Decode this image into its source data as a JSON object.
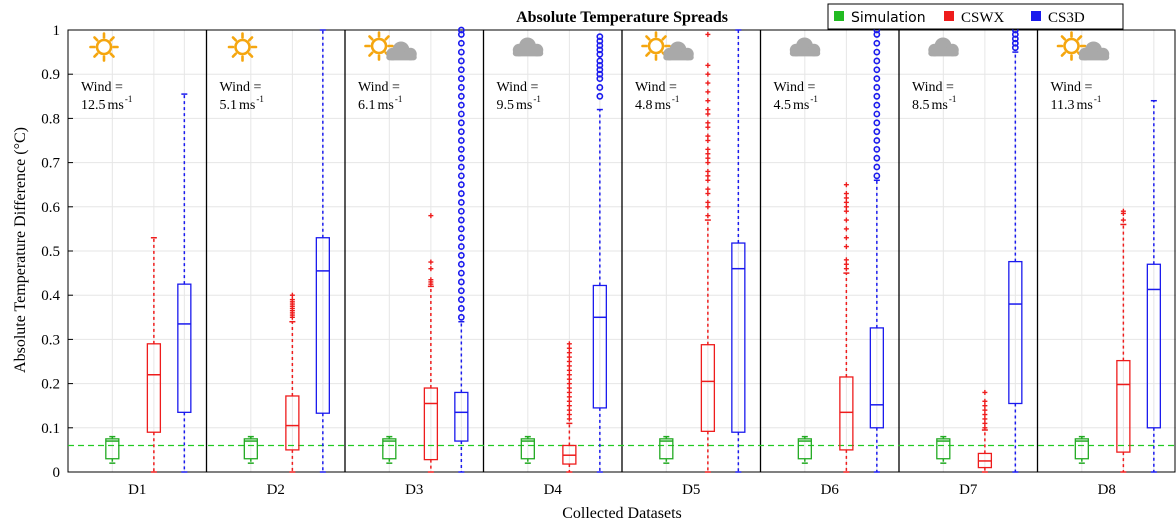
{
  "chart_data": {
    "type": "boxplot",
    "title": "Absolute Temperature Spreads",
    "xlabel": "Collected Datasets",
    "ylabel": "Absolute Temperature Difference (°C)",
    "ylim": [
      0,
      1
    ],
    "yticks": [
      "0",
      "0.1",
      "0.2",
      "0.3",
      "0.4",
      "0.5",
      "0.6",
      "0.7",
      "0.8",
      "0.9",
      "1"
    ],
    "grid": true,
    "legend_position": "top-right",
    "reference_line": {
      "y": 0.06,
      "style": "dashed",
      "color": "#22cc22"
    },
    "series": [
      {
        "name": "Simulation",
        "color": "#22aa22",
        "fill": "#22bb22"
      },
      {
        "name": "CSWX",
        "color": "#ee1c1c",
        "fill": "#ee1c1c"
      },
      {
        "name": "CS3D",
        "color": "#1a1aee",
        "fill": "#1a1aee"
      }
    ],
    "groups": [
      {
        "label": "D1",
        "weather": "sun",
        "wind_label": "Wind =",
        "wind_value": "12.5",
        "boxes": [
          {
            "series": "Simulation",
            "whisker_low": 0.02,
            "q1": 0.03,
            "median": 0.07,
            "q3": 0.075,
            "whisker_high": 0.08,
            "outliers": []
          },
          {
            "series": "CSWX",
            "whisker_low": 0.0,
            "q1": 0.09,
            "median": 0.22,
            "q3": 0.29,
            "whisker_high": 0.53,
            "outliers": []
          },
          {
            "series": "CS3D",
            "whisker_low": 0.0,
            "q1": 0.135,
            "median": 0.335,
            "q3": 0.425,
            "whisker_high": 0.855,
            "outliers": []
          }
        ]
      },
      {
        "label": "D2",
        "weather": "sun",
        "wind_label": "Wind =",
        "wind_value": "5.1",
        "boxes": [
          {
            "series": "Simulation",
            "whisker_low": 0.02,
            "q1": 0.03,
            "median": 0.07,
            "q3": 0.075,
            "whisker_high": 0.08,
            "outliers": []
          },
          {
            "series": "CSWX",
            "whisker_low": 0.0,
            "q1": 0.05,
            "median": 0.105,
            "q3": 0.172,
            "whisker_high": 0.34,
            "outliers": [
              0.35,
              0.355,
              0.36,
              0.365,
              0.37,
              0.375,
              0.38,
              0.385,
              0.39,
              0.4
            ]
          },
          {
            "series": "CS3D",
            "whisker_low": 0.0,
            "q1": 0.133,
            "median": 0.455,
            "q3": 0.53,
            "whisker_high": 1.0,
            "outliers": []
          }
        ]
      },
      {
        "label": "D3",
        "weather": "sun-cloud",
        "wind_label": "Wind =",
        "wind_value": "6.1",
        "boxes": [
          {
            "series": "Simulation",
            "whisker_low": 0.02,
            "q1": 0.03,
            "median": 0.07,
            "q3": 0.075,
            "whisker_high": 0.08,
            "outliers": []
          },
          {
            "series": "CSWX",
            "whisker_low": 0.0,
            "q1": 0.028,
            "median": 0.155,
            "q3": 0.19,
            "whisker_high": 0.42,
            "outliers": [
              0.425,
              0.43,
              0.435,
              0.46,
              0.475,
              0.58
            ]
          },
          {
            "series": "CS3D",
            "whisker_low": 0.0,
            "q1": 0.07,
            "median": 0.135,
            "q3": 0.18,
            "whisker_high": 0.34,
            "outliers": [
              0.35,
              0.37,
              0.39,
              0.41,
              0.43,
              0.45,
              0.47,
              0.49,
              0.51,
              0.53,
              0.55,
              0.57,
              0.59,
              0.61,
              0.63,
              0.65,
              0.67,
              0.69,
              0.71,
              0.73,
              0.75,
              0.77,
              0.79,
              0.81,
              0.83,
              0.85,
              0.87,
              0.89,
              0.91,
              0.93,
              0.95,
              0.97,
              0.99,
              1.0
            ]
          }
        ]
      },
      {
        "label": "D4",
        "weather": "cloud",
        "wind_label": "Wind =",
        "wind_value": "9.5",
        "boxes": [
          {
            "series": "Simulation",
            "whisker_low": 0.02,
            "q1": 0.03,
            "median": 0.07,
            "q3": 0.075,
            "whisker_high": 0.08,
            "outliers": []
          },
          {
            "series": "CSWX",
            "whisker_low": 0.0,
            "q1": 0.018,
            "median": 0.038,
            "q3": 0.06,
            "whisker_high": 0.11,
            "outliers": [
              0.12,
              0.13,
              0.14,
              0.15,
              0.16,
              0.17,
              0.18,
              0.19,
              0.2,
              0.21,
              0.22,
              0.23,
              0.24,
              0.25,
              0.26,
              0.27,
              0.28,
              0.29
            ]
          },
          {
            "series": "CS3D",
            "whisker_low": 0.0,
            "q1": 0.145,
            "median": 0.35,
            "q3": 0.422,
            "whisker_high": 0.82,
            "outliers": [
              0.85,
              0.87,
              0.89,
              0.9,
              0.91,
              0.92,
              0.93,
              0.945,
              0.955,
              0.965,
              0.975,
              0.985
            ]
          }
        ]
      },
      {
        "label": "D5",
        "weather": "sun-cloud",
        "wind_label": "Wind =",
        "wind_value": "4.8",
        "boxes": [
          {
            "series": "Simulation",
            "whisker_low": 0.02,
            "q1": 0.03,
            "median": 0.07,
            "q3": 0.075,
            "whisker_high": 0.08,
            "outliers": []
          },
          {
            "series": "CSWX",
            "whisker_low": 0.0,
            "q1": 0.092,
            "median": 0.205,
            "q3": 0.288,
            "whisker_high": 0.57,
            "outliers": [
              0.58,
              0.6,
              0.61,
              0.63,
              0.64,
              0.66,
              0.67,
              0.68,
              0.7,
              0.71,
              0.72,
              0.73,
              0.75,
              0.76,
              0.78,
              0.79,
              0.81,
              0.82,
              0.84,
              0.86,
              0.88,
              0.9,
              0.92,
              0.99
            ]
          },
          {
            "series": "CS3D",
            "whisker_low": 0.0,
            "q1": 0.09,
            "median": 0.46,
            "q3": 0.518,
            "whisker_high": 1.0,
            "outliers": []
          }
        ]
      },
      {
        "label": "D6",
        "weather": "cloud",
        "wind_label": "Wind =",
        "wind_value": "4.5",
        "boxes": [
          {
            "series": "Simulation",
            "whisker_low": 0.02,
            "q1": 0.03,
            "median": 0.07,
            "q3": 0.075,
            "whisker_high": 0.08,
            "outliers": []
          },
          {
            "series": "CSWX",
            "whisker_low": 0.0,
            "q1": 0.05,
            "median": 0.135,
            "q3": 0.215,
            "whisker_high": 0.45,
            "outliers": [
              0.46,
              0.47,
              0.48,
              0.51,
              0.53,
              0.55,
              0.57,
              0.59,
              0.6,
              0.61,
              0.62,
              0.63,
              0.65
            ]
          },
          {
            "series": "CS3D",
            "whisker_low": 0.0,
            "q1": 0.1,
            "median": 0.152,
            "q3": 0.326,
            "whisker_high": 0.66,
            "outliers": [
              0.67,
              0.69,
              0.71,
              0.73,
              0.75,
              0.77,
              0.79,
              0.81,
              0.83,
              0.85,
              0.87,
              0.89,
              0.91,
              0.93,
              0.95,
              0.97,
              0.99,
              1.0
            ]
          }
        ]
      },
      {
        "label": "D7",
        "weather": "cloud",
        "wind_label": "Wind =",
        "wind_value": "8.5",
        "boxes": [
          {
            "series": "Simulation",
            "whisker_low": 0.02,
            "q1": 0.03,
            "median": 0.07,
            "q3": 0.075,
            "whisker_high": 0.08,
            "outliers": []
          },
          {
            "series": "CSWX",
            "whisker_low": 0.0,
            "q1": 0.01,
            "median": 0.025,
            "q3": 0.042,
            "whisker_high": 0.095,
            "outliers": [
              0.1,
              0.11,
              0.12,
              0.13,
              0.14,
              0.15,
              0.16,
              0.18
            ]
          },
          {
            "series": "CS3D",
            "whisker_low": 0.0,
            "q1": 0.155,
            "median": 0.38,
            "q3": 0.476,
            "whisker_high": 0.95,
            "outliers": [
              0.96,
              0.97,
              0.98,
              0.99,
              1.0
            ]
          }
        ]
      },
      {
        "label": "D8",
        "weather": "sun-cloud",
        "wind_label": "Wind =",
        "wind_value": "11.3",
        "boxes": [
          {
            "series": "Simulation",
            "whisker_low": 0.02,
            "q1": 0.03,
            "median": 0.07,
            "q3": 0.075,
            "whisker_high": 0.08,
            "outliers": []
          },
          {
            "series": "CSWX",
            "whisker_low": 0.0,
            "q1": 0.045,
            "median": 0.198,
            "q3": 0.252,
            "whisker_high": 0.56,
            "outliers": [
              0.57,
              0.585,
              0.59
            ]
          },
          {
            "series": "CS3D",
            "whisker_low": 0.0,
            "q1": 0.1,
            "median": 0.413,
            "q3": 0.47,
            "whisker_high": 0.84,
            "outliers": []
          }
        ]
      }
    ]
  },
  "colors": {
    "sun": "#f5a60f",
    "cloud": "#a9a9a9",
    "grid": "#e6e6e6",
    "separator": "#000000"
  },
  "icons": {
    "sun": "sun-icon",
    "cloud": "cloud-icon"
  }
}
